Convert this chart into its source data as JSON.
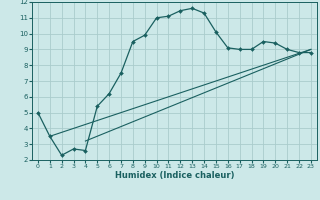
{
  "xlabel": "Humidex (Indice chaleur)",
  "bg_color": "#cce8e8",
  "grid_color": "#aacccc",
  "line_color": "#1a6060",
  "xlim": [
    -0.5,
    23.5
  ],
  "ylim": [
    2,
    12
  ],
  "xticks": [
    0,
    1,
    2,
    3,
    4,
    5,
    6,
    7,
    8,
    9,
    10,
    11,
    12,
    13,
    14,
    15,
    16,
    17,
    18,
    19,
    20,
    21,
    22,
    23
  ],
  "yticks": [
    2,
    3,
    4,
    5,
    6,
    7,
    8,
    9,
    10,
    11,
    12
  ],
  "curve1_x": [
    0,
    1,
    2,
    3,
    4,
    5,
    6,
    7,
    8,
    9,
    10,
    11,
    12,
    13,
    14,
    15,
    16,
    17,
    18,
    19,
    20,
    21,
    22,
    23
  ],
  "curve1_y": [
    5.0,
    3.5,
    2.3,
    2.7,
    2.6,
    5.4,
    6.2,
    7.5,
    9.5,
    9.9,
    11.0,
    11.1,
    11.45,
    11.6,
    11.3,
    10.1,
    9.1,
    9.0,
    9.0,
    9.5,
    9.4,
    9.0,
    8.8,
    8.8
  ],
  "line2_x": [
    1,
    23
  ],
  "line2_y": [
    3.5,
    9.0
  ],
  "line3_x": [
    4,
    23
  ],
  "line3_y": [
    3.2,
    9.0
  ]
}
